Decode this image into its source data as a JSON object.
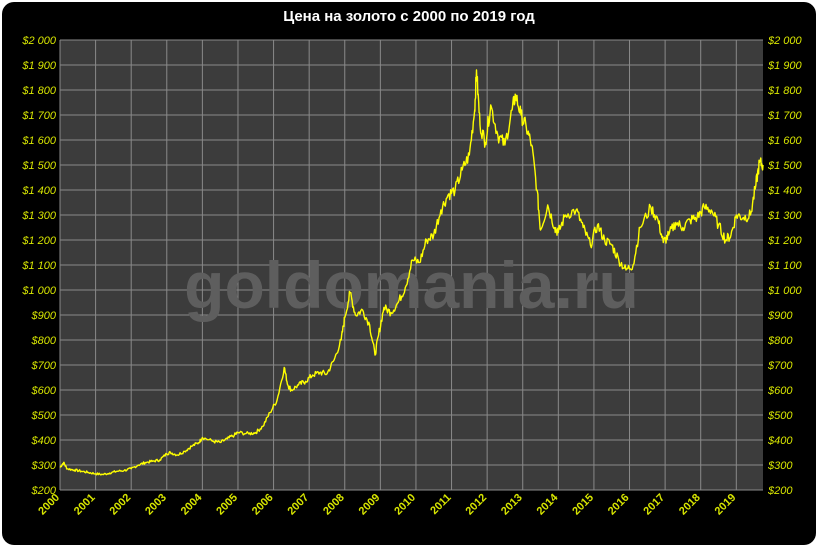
{
  "colors": {
    "background": "#000000",
    "plot_area": "#3c3c3c",
    "gridline": "#8a8a8a",
    "line": "#ffff00",
    "tick_label": "#d8e600",
    "title": "#ffffff",
    "watermark": "#5e5e5e"
  },
  "watermark": "goldomania.ru",
  "chart_data": {
    "type": "line",
    "title": "Цена на золото с 2000 по 2019 год",
    "xlabel": "",
    "ylabel": "",
    "x_range": [
      2000.0,
      2019.75
    ],
    "ylim": [
      200,
      2000
    ],
    "grid": true,
    "legend": "none",
    "y_ticks": [
      200,
      300,
      400,
      500,
      600,
      700,
      800,
      900,
      1000,
      1100,
      1200,
      1300,
      1400,
      1500,
      1600,
      1700,
      1800,
      1900,
      2000
    ],
    "y_tick_labels": [
      "$200",
      "$300",
      "$400",
      "$500",
      "$600",
      "$700",
      "$800",
      "$900",
      "$1 000",
      "$1 100",
      "$1 200",
      "$1 300",
      "$1 400",
      "$1 500",
      "$1 600",
      "$1 700",
      "$1 800",
      "$1 900",
      "$2 000"
    ],
    "x_ticks": [
      "2000",
      "2001",
      "2002",
      "2003",
      "2004",
      "2005",
      "2006",
      "2007",
      "2008",
      "2009",
      "2010",
      "2011",
      "2012",
      "2013",
      "2014",
      "2015",
      "2016",
      "2017",
      "2018",
      "2019"
    ],
    "series": [
      {
        "x": [
          2000.0,
          2000.1,
          2000.2,
          2000.4,
          2000.6,
          2000.8,
          2001.0,
          2001.2,
          2001.4,
          2001.6,
          2001.8,
          2002.0,
          2002.2,
          2002.4,
          2002.6,
          2002.8,
          2003.0,
          2003.1,
          2003.3,
          2003.5,
          2003.7,
          2003.9,
          2004.0,
          2004.3,
          2004.5,
          2004.7,
          2004.9,
          2005.0,
          2005.3,
          2005.5,
          2005.7,
          2005.9,
          2006.1,
          2006.3,
          2006.4,
          2006.5,
          2006.7,
          2006.9,
          2007.1,
          2007.3,
          2007.5,
          2007.7,
          2007.9,
          2008.0,
          2008.15,
          2008.3,
          2008.5,
          2008.7,
          2008.85,
          2008.95,
          2009.1,
          2009.3,
          2009.5,
          2009.7,
          2009.9,
          2010.1,
          2010.3,
          2010.5,
          2010.7,
          2010.9,
          2011.1,
          2011.3,
          2011.5,
          2011.65,
          2011.7,
          2011.8,
          2011.95,
          2012.1,
          2012.3,
          2012.5,
          2012.7,
          2012.8,
          2012.95,
          2013.1,
          2013.25,
          2013.4,
          2013.5,
          2013.7,
          2013.9,
          2014.0,
          2014.2,
          2014.5,
          2014.7,
          2014.9,
          2015.1,
          2015.3,
          2015.5,
          2015.7,
          2015.9,
          2016.1,
          2016.3,
          2016.6,
          2016.8,
          2016.95,
          2017.1,
          2017.3,
          2017.5,
          2017.7,
          2017.9,
          2018.1,
          2018.3,
          2018.5,
          2018.7,
          2018.85,
          2019.0,
          2019.2,
          2019.4,
          2019.55,
          2019.65,
          2019.75
        ],
        "y": [
          290,
          310,
          285,
          280,
          275,
          270,
          265,
          262,
          268,
          275,
          278,
          285,
          300,
          310,
          315,
          320,
          345,
          350,
          340,
          355,
          375,
          390,
          410,
          395,
          390,
          405,
          420,
          430,
          425,
          430,
          455,
          510,
          560,
          690,
          620,
          600,
          620,
          635,
          660,
          670,
          665,
          720,
          800,
          890,
          990,
          900,
          920,
          860,
          740,
          820,
          930,
          910,
          950,
          1010,
          1120,
          1110,
          1200,
          1220,
          1320,
          1380,
          1400,
          1480,
          1540,
          1720,
          1880,
          1660,
          1590,
          1740,
          1620,
          1580,
          1720,
          1780,
          1700,
          1650,
          1580,
          1400,
          1240,
          1340,
          1250,
          1230,
          1300,
          1320,
          1250,
          1180,
          1260,
          1200,
          1180,
          1120,
          1080,
          1100,
          1250,
          1330,
          1280,
          1190,
          1220,
          1270,
          1250,
          1280,
          1290,
          1330,
          1320,
          1260,
          1200,
          1220,
          1300,
          1290,
          1300,
          1420,
          1510,
          1500
        ]
      }
    ]
  }
}
